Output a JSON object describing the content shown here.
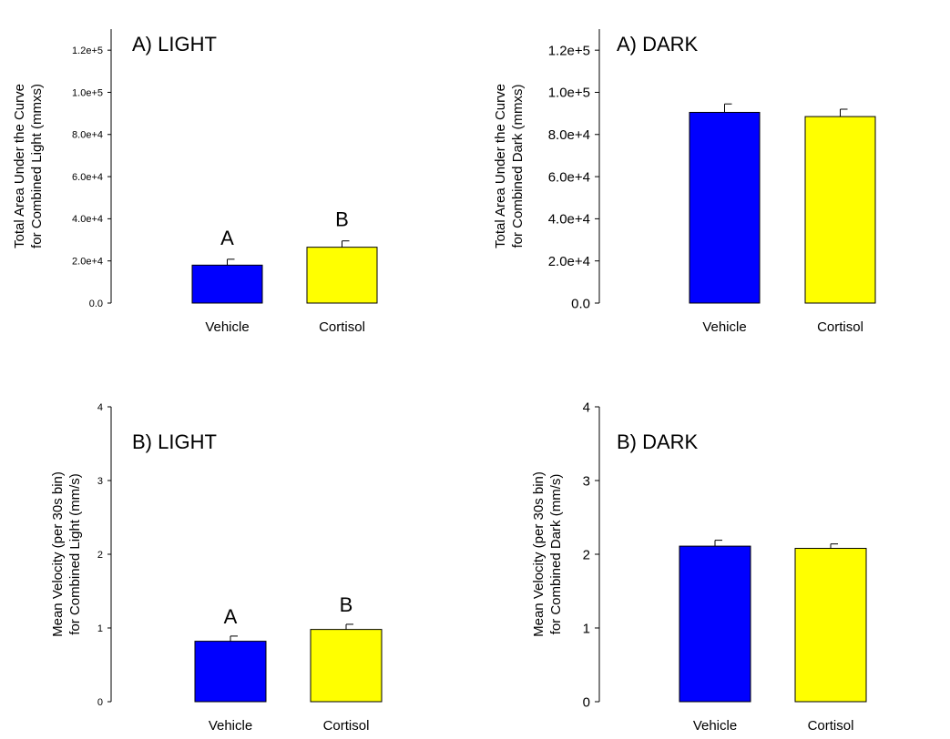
{
  "figure": {
    "panels": [
      {
        "id": "a-light",
        "panel_title": "A) LIGHT",
        "ylabel": [
          "Total Area Under the Curve",
          "for Combined Light (mmxs)"
        ],
        "yticks": [
          "0.0",
          "2.0e+4",
          "4.0e+4",
          "6.0e+4",
          "8.0e+4",
          "1.0e+5",
          "1.2e+5"
        ]
      },
      {
        "id": "a-dark",
        "panel_title": "A) DARK",
        "ylabel": [
          "Total Area Under the Curve",
          "for Combined Dark (mmxs)"
        ],
        "yticks": [
          "0.0",
          "2.0e+4",
          "4.0e+4",
          "6.0e+4",
          "8.0e+4",
          "1.0e+5",
          "1.2e+5"
        ]
      },
      {
        "id": "b-light",
        "panel_title": "B) LIGHT",
        "ylabel": [
          "Mean Velocity (per 30s bin)",
          "for Combined Light (mm/s)"
        ],
        "yticks": [
          "0",
          "1",
          "2",
          "3",
          "4"
        ]
      },
      {
        "id": "b-dark",
        "panel_title": "B) DARK",
        "ylabel": [
          "Mean Velocity (per 30s bin)",
          "for Combined Dark (mm/s)"
        ],
        "yticks": [
          "0",
          "1",
          "2",
          "3",
          "4"
        ]
      }
    ]
  },
  "chart_data": [
    {
      "type": "bar",
      "title": "A) LIGHT",
      "ylabel": "Total Area Under the Curve for Combined Light (mmxs)",
      "xlabel": "",
      "categories": [
        "Vehicle",
        "Cortisol"
      ],
      "values": [
        18000,
        26500
      ],
      "errors": [
        2800,
        3000
      ],
      "annotations": [
        "A",
        "B"
      ],
      "colors": [
        "#0000ff",
        "#ffff00"
      ],
      "ylim": [
        0,
        130000
      ],
      "yticks": [
        0,
        20000,
        40000,
        60000,
        80000,
        100000,
        120000
      ],
      "grid": false
    },
    {
      "type": "bar",
      "title": "A) DARK",
      "ylabel": "Total Area Under the Curve for Combined Dark (mmxs)",
      "xlabel": "",
      "categories": [
        "Vehicle",
        "Cortisol"
      ],
      "values": [
        90500,
        88500
      ],
      "errors": [
        4000,
        3500
      ],
      "annotations": [
        "",
        ""
      ],
      "colors": [
        "#0000ff",
        "#ffff00"
      ],
      "ylim": [
        0,
        130000
      ],
      "yticks": [
        0,
        20000,
        40000,
        60000,
        80000,
        100000,
        120000
      ],
      "grid": false
    },
    {
      "type": "bar",
      "title": "B) LIGHT",
      "ylabel": "Mean Velocity (per 30s bin) for Combined Light (mm/s)",
      "xlabel": "",
      "categories": [
        "Vehicle",
        "Cortisol"
      ],
      "values": [
        0.82,
        0.98
      ],
      "errors": [
        0.07,
        0.07
      ],
      "annotations": [
        "A",
        "B"
      ],
      "colors": [
        "#0000ff",
        "#ffff00"
      ],
      "ylim": [
        0,
        4
      ],
      "yticks": [
        0,
        1,
        2,
        3,
        4
      ],
      "grid": false
    },
    {
      "type": "bar",
      "title": "B) DARK",
      "ylabel": "Mean Velocity (per 30s bin) for Combined Dark (mm/s)",
      "xlabel": "",
      "categories": [
        "Vehicle",
        "Cortisol"
      ],
      "values": [
        2.11,
        2.08
      ],
      "errors": [
        0.08,
        0.06
      ],
      "annotations": [
        "",
        ""
      ],
      "colors": [
        "#0000ff",
        "#ffff00"
      ],
      "ylim": [
        0,
        4
      ],
      "yticks": [
        0,
        1,
        2,
        3,
        4
      ],
      "grid": false
    }
  ]
}
